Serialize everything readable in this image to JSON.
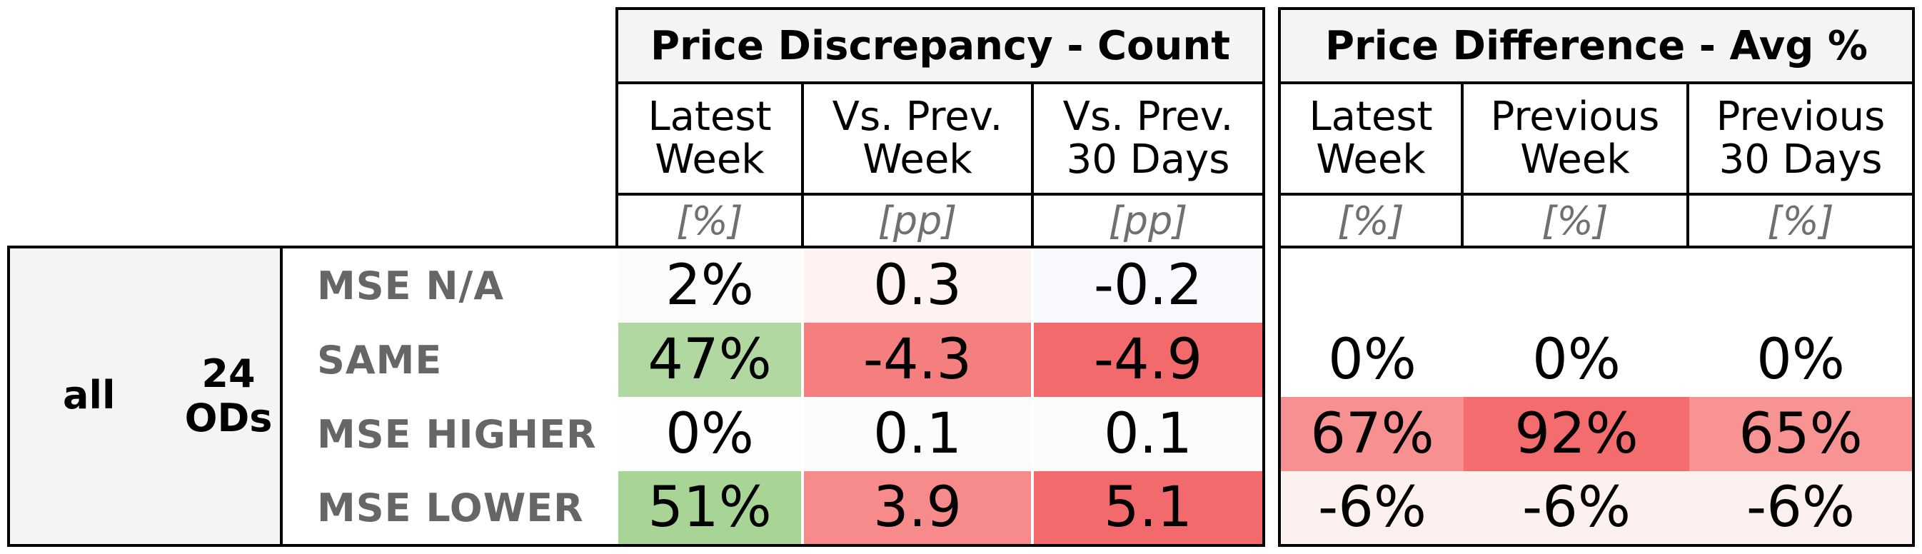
{
  "discrepancy": {
    "title": "Price Discrepancy - Count",
    "columns": [
      {
        "label": "Latest\nWeek",
        "unit": "[%]"
      },
      {
        "label": "Vs. Prev.\nWeek",
        "unit": "[pp]"
      },
      {
        "label": "Vs. Prev.\n30 Days",
        "unit": "[pp]"
      }
    ]
  },
  "difference": {
    "title": "Price Difference - Avg %",
    "columns": [
      {
        "label": "Latest\nWeek",
        "unit": "[%]"
      },
      {
        "label": "Previous\nWeek",
        "unit": "[%]"
      },
      {
        "label": "Previous\n30 Days",
        "unit": "[%]"
      }
    ]
  },
  "group": {
    "label": "all",
    "ods": "24\nODs"
  },
  "rows": [
    {
      "label": "MSE N/A",
      "discrepancy": [
        {
          "text": "2%",
          "color": "#fbfdfb"
        },
        {
          "text": "0.3",
          "color": "#fff3f2"
        },
        {
          "text": "-0.2",
          "color": "#f8f9fd"
        }
      ],
      "difference": [
        {
          "text": "",
          "color": "#ffffff"
        },
        {
          "text": "",
          "color": "#ffffff"
        },
        {
          "text": "",
          "color": "#ffffff"
        }
      ]
    },
    {
      "label": "SAME",
      "discrepancy": [
        {
          "text": "47%",
          "color": "#b0d8a0"
        },
        {
          "text": "-4.3",
          "color": "#f57f7f"
        },
        {
          "text": "-4.9",
          "color": "#f26a6c"
        }
      ],
      "difference": [
        {
          "text": "0%",
          "color": "#ffffff"
        },
        {
          "text": "0%",
          "color": "#ffffff"
        },
        {
          "text": "0%",
          "color": "#ffffff"
        }
      ]
    },
    {
      "label": "MSE HIGHER",
      "discrepancy": [
        {
          "text": "0%",
          "color": "#fefefe"
        },
        {
          "text": "0.1",
          "color": "#fefcfb"
        },
        {
          "text": "0.1",
          "color": "#fefcfb"
        }
      ],
      "difference": [
        {
          "text": "67%",
          "color": "#f79090"
        },
        {
          "text": "92%",
          "color": "#f36c6e"
        },
        {
          "text": "65%",
          "color": "#f89393"
        }
      ]
    },
    {
      "label": "MSE LOWER",
      "discrepancy": [
        {
          "text": "51%",
          "color": "#a8d496"
        },
        {
          "text": "3.9",
          "color": "#f78a8b"
        },
        {
          "text": "5.1",
          "color": "#f26a6c"
        }
      ],
      "difference": [
        {
          "text": "-6%",
          "color": "#fdf1f0"
        },
        {
          "text": "-6%",
          "color": "#fdf1f0"
        },
        {
          "text": "-6%",
          "color": "#fdf1f0"
        }
      ]
    }
  ]
}
